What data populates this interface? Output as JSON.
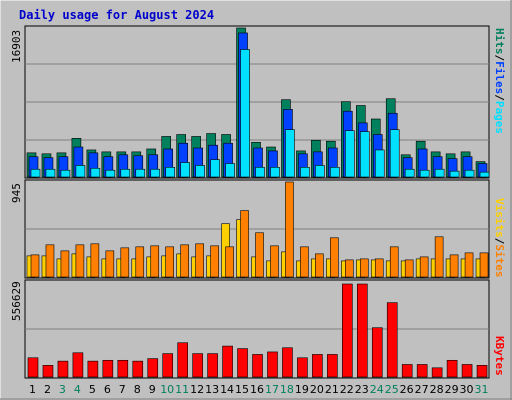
{
  "title": "Daily usage for August 2024",
  "colors": {
    "background": "#c0c0c0",
    "title": "#0000cc",
    "hits": "#00805c",
    "files": "#0040ff",
    "pages": "#00e0ff",
    "visits": "#ffd000",
    "sites": "#ff8000",
    "kbytes": "#ff0000",
    "weekend_day": "#00805c",
    "weekday": "#000000"
  },
  "legend": {
    "top": {
      "pages": "Pages",
      "files": "Files",
      "hits": "Hits",
      "sep": "/"
    },
    "middle": {
      "sites": "Sites",
      "visits": "Visits",
      "sep": "/"
    },
    "bottom": {
      "kbytes": "KBytes"
    }
  },
  "chart_data": [
    {
      "type": "bar",
      "panel": "hits-files-pages",
      "max_label": "16903",
      "ylim": [
        0,
        16903
      ],
      "categories": [
        "1",
        "2",
        "3",
        "4",
        "5",
        "6",
        "7",
        "8",
        "9",
        "10",
        "11",
        "12",
        "13",
        "14",
        "15",
        "16",
        "17",
        "18",
        "19",
        "20",
        "21",
        "22",
        "23",
        "24",
        "25",
        "26",
        "27",
        "28",
        "29",
        "30",
        "31"
      ],
      "weekend": [
        3,
        4,
        10,
        11,
        17,
        18,
        24,
        25,
        31
      ],
      "series": [
        {
          "name": "Hits",
          "values": [
            2740,
            2630,
            2740,
            4390,
            3070,
            2850,
            2850,
            2850,
            3180,
            4600,
            4820,
            4600,
            4930,
            4820,
            16903,
            3940,
            3400,
            8770,
            2960,
            4170,
            4060,
            8550,
            8110,
            6580,
            8880,
            2520,
            4060,
            2850,
            2630,
            2850,
            1750
          ]
        },
        {
          "name": "Files",
          "values": [
            2300,
            2190,
            2300,
            3400,
            2740,
            2300,
            2520,
            2410,
            2520,
            3180,
            3830,
            3290,
            3610,
            3830,
            16340,
            3290,
            2960,
            7670,
            2630,
            2850,
            3290,
            7460,
            6140,
            4820,
            7230,
            2190,
            3180,
            2300,
            2080,
            2300,
            1530
          ]
        },
        {
          "name": "Pages",
          "values": [
            880,
            880,
            770,
            1310,
            990,
            770,
            880,
            880,
            880,
            1100,
            1640,
            1310,
            1970,
            1530,
            14460,
            1100,
            1100,
            5370,
            1100,
            1310,
            1100,
            5260,
            5150,
            3070,
            5370,
            880,
            770,
            880,
            660,
            770,
            550
          ]
        }
      ]
    },
    {
      "type": "bar",
      "panel": "visits-sites",
      "max_label": "945",
      "ylim": [
        0,
        945
      ],
      "categories": [
        "1",
        "2",
        "3",
        "4",
        "5",
        "6",
        "7",
        "8",
        "9",
        "10",
        "11",
        "12",
        "13",
        "14",
        "15",
        "16",
        "17",
        "18",
        "19",
        "20",
        "21",
        "22",
        "23",
        "24",
        "25",
        "26",
        "27",
        "28",
        "29",
        "30",
        "31"
      ],
      "weekend": [
        3,
        4,
        10,
        11,
        17,
        18,
        24,
        25,
        31
      ],
      "series": [
        {
          "name": "Visits",
          "values": [
            210,
            210,
            180,
            230,
            200,
            180,
            180,
            180,
            200,
            210,
            230,
            200,
            210,
            530,
            570,
            200,
            160,
            250,
            160,
            180,
            180,
            160,
            170,
            170,
            160,
            160,
            180,
            180,
            180,
            180,
            180
          ]
        },
        {
          "name": "Sites",
          "values": [
            220,
            320,
            260,
            320,
            330,
            260,
            290,
            300,
            310,
            300,
            320,
            330,
            310,
            300,
            660,
            440,
            310,
            945,
            300,
            230,
            390,
            170,
            180,
            180,
            300,
            170,
            200,
            400,
            220,
            240,
            240
          ]
        }
      ]
    },
    {
      "type": "bar",
      "panel": "kbytes",
      "max_label": "556629",
      "ylim": [
        0,
        556629
      ],
      "categories": [
        "1",
        "2",
        "3",
        "4",
        "5",
        "6",
        "7",
        "8",
        "9",
        "10",
        "11",
        "12",
        "13",
        "14",
        "15",
        "16",
        "17",
        "18",
        "19",
        "20",
        "21",
        "22",
        "23",
        "24",
        "25",
        "26",
        "27",
        "28",
        "29",
        "30",
        "31"
      ],
      "weekend": [
        3,
        4,
        10,
        11,
        17,
        18,
        24,
        25,
        31
      ],
      "series": [
        {
          "name": "KBytes",
          "values": [
            115000,
            70000,
            95000,
            145000,
            95000,
            100000,
            100000,
            95000,
            110000,
            140000,
            205000,
            140000,
            140000,
            185000,
            170000,
            135000,
            150000,
            175000,
            115000,
            135000,
            135000,
            556629,
            556629,
            295000,
            445000,
            75000,
            75000,
            55000,
            100000,
            75000,
            70000
          ]
        }
      ]
    }
  ]
}
